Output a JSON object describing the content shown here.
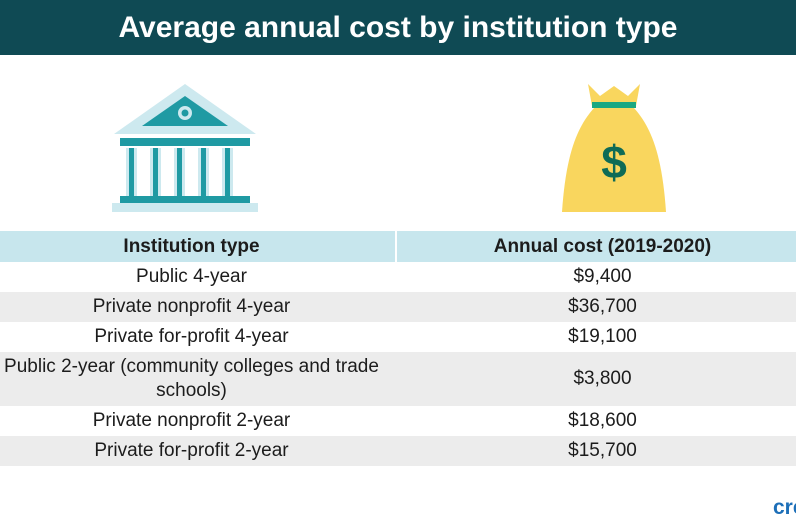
{
  "title": "Average annual cost by institution type",
  "icons": {
    "left": "bank-building-icon",
    "right": "money-bag-icon",
    "money_symbol": "$"
  },
  "colors": {
    "header_bg": "#0f4a54",
    "table_header_bg": "#c7e6ed",
    "row_stripe": "#ececec",
    "icon_teal": "#1f9aa3",
    "icon_light": "#cde9ef",
    "bag_yellow": "#f9d65e",
    "bag_green": "#1aa882",
    "brand_blue": "#1d6fb8"
  },
  "table": {
    "headers": [
      "Institution type",
      "Annual cost (2019-2020)"
    ],
    "rows": [
      {
        "type": "Public 4-year",
        "cost": "$9,400"
      },
      {
        "type": "Private nonprofit 4-year",
        "cost": "$36,700"
      },
      {
        "type": "Private for-profit 4-year",
        "cost": "$19,100"
      },
      {
        "type": "Public 2-year (community colleges and trade schools)",
        "cost": "$3,800"
      },
      {
        "type": "Private nonprofit 2-year",
        "cost": "$18,600"
      },
      {
        "type": "Private for-profit 2-year",
        "cost": "$15,700"
      }
    ]
  },
  "brand": "cre"
}
